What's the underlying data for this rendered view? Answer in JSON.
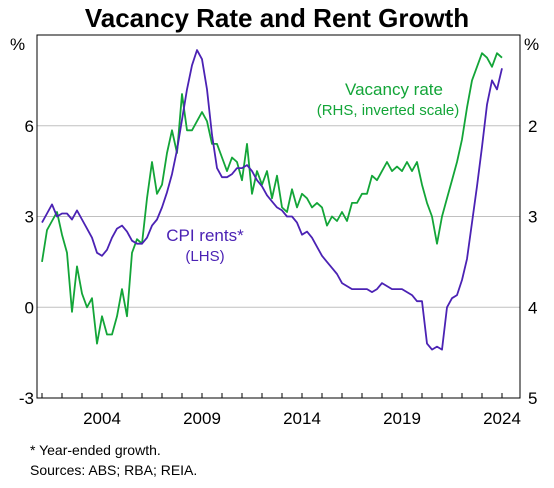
{
  "title": "Vacancy Rate and Rent Growth",
  "footnote": "*     Year-ended growth.",
  "sources": "Sources: ABS; RBA; REIA.",
  "colors": {
    "cpi": "#4b22b4",
    "vacancy": "#13a538",
    "grid": "#c0c0c0",
    "axis": "#000000"
  },
  "chart_data": {
    "type": "line",
    "title": "Vacancy Rate and Rent Growth",
    "left_axis": {
      "unit": "%",
      "range": [
        -3,
        9
      ],
      "ticks": [
        -3,
        0,
        3,
        6
      ]
    },
    "right_axis": {
      "unit": "%",
      "range": [
        5,
        1
      ],
      "inverted": true,
      "ticks": [
        5,
        4,
        3,
        2
      ]
    },
    "x_axis": {
      "range": [
        2000.75,
        2024.9
      ],
      "ticks": [
        2004,
        2009,
        2014,
        2019,
        2024
      ]
    },
    "grid": true,
    "series": [
      {
        "name": "CPI rents*",
        "label_lines": [
          "CPI rents*",
          "(LHS)"
        ],
        "axis": "left",
        "x": [
          2001.0,
          2001.25,
          2001.5,
          2001.75,
          2002.0,
          2002.25,
          2002.5,
          2002.75,
          2003.0,
          2003.25,
          2003.5,
          2003.75,
          2004.0,
          2004.25,
          2004.5,
          2004.75,
          2005.0,
          2005.25,
          2005.5,
          2005.75,
          2006.0,
          2006.25,
          2006.5,
          2006.75,
          2007.0,
          2007.25,
          2007.5,
          2007.75,
          2008.0,
          2008.25,
          2008.5,
          2008.75,
          2009.0,
          2009.25,
          2009.5,
          2009.75,
          2010.0,
          2010.25,
          2010.5,
          2010.75,
          2011.0,
          2011.25,
          2011.5,
          2011.75,
          2012.0,
          2012.25,
          2012.5,
          2012.75,
          2013.0,
          2013.25,
          2013.5,
          2013.75,
          2014.0,
          2014.25,
          2014.5,
          2014.75,
          2015.0,
          2015.25,
          2015.5,
          2015.75,
          2016.0,
          2016.25,
          2016.5,
          2016.75,
          2017.0,
          2017.25,
          2017.5,
          2017.75,
          2018.0,
          2018.25,
          2018.5,
          2018.75,
          2019.0,
          2019.25,
          2019.5,
          2019.75,
          2020.0,
          2020.25,
          2020.5,
          2020.75,
          2021.0,
          2021.25,
          2021.5,
          2021.75,
          2022.0,
          2022.25,
          2022.5,
          2022.75,
          2023.0,
          2023.25,
          2023.5,
          2023.75,
          2024.0
        ],
        "values": [
          2.8,
          3.1,
          3.4,
          3.0,
          3.1,
          3.1,
          2.9,
          3.2,
          2.9,
          2.6,
          2.3,
          1.8,
          1.7,
          1.9,
          2.3,
          2.6,
          2.7,
          2.5,
          2.2,
          2.1,
          2.1,
          2.3,
          2.7,
          2.9,
          3.3,
          3.8,
          4.4,
          5.2,
          6.2,
          7.2,
          8.0,
          8.5,
          8.2,
          7.2,
          5.7,
          4.6,
          4.3,
          4.3,
          4.4,
          4.6,
          4.6,
          4.7,
          4.5,
          4.2,
          4.0,
          3.7,
          3.5,
          3.3,
          3.2,
          3.0,
          3.0,
          2.8,
          2.4,
          2.5,
          2.3,
          2.0,
          1.7,
          1.5,
          1.3,
          1.1,
          0.8,
          0.7,
          0.6,
          0.6,
          0.6,
          0.6,
          0.5,
          0.6,
          0.8,
          0.7,
          0.6,
          0.6,
          0.6,
          0.5,
          0.4,
          0.2,
          0.2,
          -1.2,
          -1.4,
          -1.3,
          -1.4,
          0.0,
          0.3,
          0.4,
          0.9,
          1.6,
          2.8,
          4.0,
          5.3,
          6.7,
          7.5,
          7.2,
          7.9
        ]
      },
      {
        "name": "Vacancy rate",
        "label_lines": [
          "Vacancy rate",
          "(RHS, inverted scale)"
        ],
        "axis": "right",
        "x": [
          2001.0,
          2001.25,
          2001.5,
          2001.75,
          2002.0,
          2002.25,
          2002.5,
          2002.75,
          2003.0,
          2003.25,
          2003.5,
          2003.75,
          2004.0,
          2004.25,
          2004.5,
          2004.75,
          2005.0,
          2005.25,
          2005.5,
          2005.75,
          2006.0,
          2006.25,
          2006.5,
          2006.75,
          2007.0,
          2007.25,
          2007.5,
          2007.75,
          2008.0,
          2008.25,
          2008.5,
          2008.75,
          2009.0,
          2009.25,
          2009.5,
          2009.75,
          2010.0,
          2010.25,
          2010.5,
          2010.75,
          2011.0,
          2011.25,
          2011.5,
          2011.75,
          2012.0,
          2012.25,
          2012.5,
          2012.75,
          2013.0,
          2013.25,
          2013.5,
          2013.75,
          2014.0,
          2014.25,
          2014.5,
          2014.75,
          2015.0,
          2015.25,
          2015.5,
          2015.75,
          2016.0,
          2016.25,
          2016.5,
          2016.75,
          2017.0,
          2017.25,
          2017.5,
          2017.75,
          2018.0,
          2018.25,
          2018.5,
          2018.75,
          2019.0,
          2019.25,
          2019.5,
          2019.75,
          2020.0,
          2020.25,
          2020.5,
          2020.75,
          2021.0,
          2021.25,
          2021.5,
          2021.75,
          2022.0,
          2022.25,
          2022.5,
          2022.75,
          2023.0,
          2023.25,
          2023.5,
          2023.75,
          2024.0
        ],
        "values": [
          3.5,
          3.15,
          3.05,
          2.95,
          3.2,
          3.4,
          4.05,
          3.55,
          3.85,
          4.0,
          3.9,
          4.4,
          4.1,
          4.3,
          4.3,
          4.1,
          3.8,
          4.1,
          3.4,
          3.25,
          3.3,
          2.8,
          2.4,
          2.75,
          2.65,
          2.3,
          2.05,
          2.3,
          1.65,
          2.05,
          2.05,
          1.95,
          1.85,
          1.95,
          2.2,
          2.2,
          2.35,
          2.5,
          2.35,
          2.4,
          2.6,
          2.2,
          2.75,
          2.5,
          2.65,
          2.5,
          2.8,
          2.55,
          2.9,
          2.95,
          2.7,
          2.9,
          2.75,
          2.8,
          2.9,
          2.85,
          2.9,
          3.1,
          3.0,
          3.05,
          2.95,
          3.05,
          2.85,
          2.85,
          2.75,
          2.75,
          2.55,
          2.6,
          2.5,
          2.4,
          2.5,
          2.45,
          2.5,
          2.4,
          2.5,
          2.4,
          2.65,
          2.85,
          3.0,
          3.3,
          3.0,
          2.8,
          2.6,
          2.4,
          2.15,
          1.8,
          1.5,
          1.35,
          1.2,
          1.25,
          1.35,
          1.2,
          1.25
        ]
      }
    ]
  }
}
